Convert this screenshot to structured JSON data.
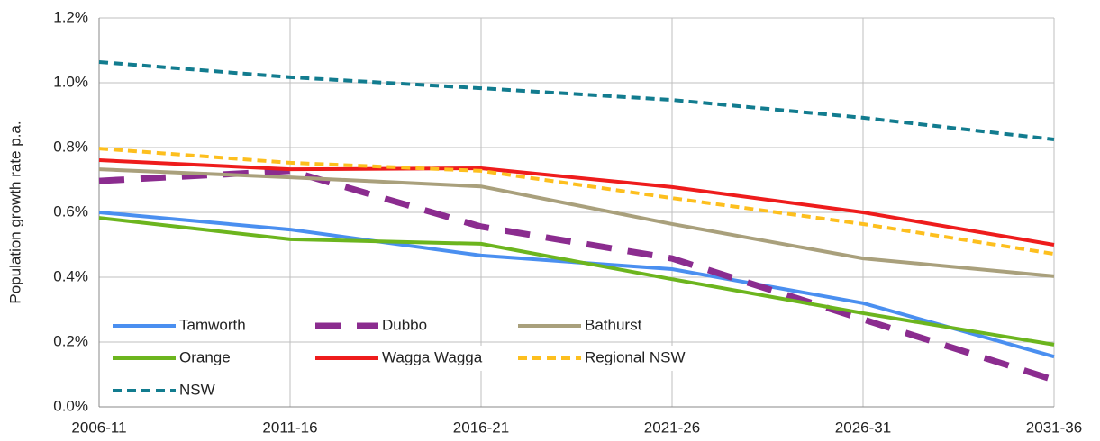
{
  "chart_data": {
    "type": "line",
    "y_label": "Population growth rate p.a.",
    "categories": [
      "2006-11",
      "2011-16",
      "2016-21",
      "2021-26",
      "2026-31",
      "2031-36"
    ],
    "ylim": [
      0,
      1.2
    ],
    "yticks": [
      {
        "value": 0,
        "label": "0.0%"
      },
      {
        "value": 0.2,
        "label": "0.2%"
      },
      {
        "value": 0.4,
        "label": "0.4%"
      },
      {
        "value": 0.6,
        "label": "0.6%"
      },
      {
        "value": 0.8,
        "label": "0.8%"
      },
      {
        "value": 1.0,
        "label": "1.0%"
      },
      {
        "value": 1.2,
        "label": "1.2%"
      }
    ],
    "grid": true,
    "legend": "bottom-left",
    "series": [
      {
        "name": "Tamworth",
        "color": "#4a8ff0",
        "line_style": "solid",
        "values": [
          0.6,
          0.547,
          0.467,
          0.425,
          0.32,
          0.155
        ]
      },
      {
        "name": "Dubbo",
        "color": "#8b2c8f",
        "line_style": "long-dash",
        "values": [
          0.697,
          0.728,
          0.556,
          0.458,
          0.27,
          0.083
        ]
      },
      {
        "name": "Bathurst",
        "color": "#a9a07c",
        "line_style": "solid",
        "values": [
          0.733,
          0.708,
          0.68,
          0.564,
          0.458,
          0.403
        ]
      },
      {
        "name": "Orange",
        "color": "#6cb51e",
        "line_style": "solid",
        "values": [
          0.583,
          0.517,
          0.503,
          0.394,
          0.289,
          0.192
        ]
      },
      {
        "name": "Wagga Wagga",
        "color": "#ee1c1c",
        "line_style": "solid",
        "values": [
          0.761,
          0.733,
          0.736,
          0.678,
          0.6,
          0.5
        ]
      },
      {
        "name": "Regional NSW",
        "color": "#fdbf1e",
        "line_style": "dash",
        "values": [
          0.797,
          0.753,
          0.728,
          0.644,
          0.564,
          0.472
        ]
      },
      {
        "name": "NSW",
        "color": "#127c8f",
        "line_style": "dash",
        "values": [
          1.064,
          1.017,
          0.983,
          0.947,
          0.892,
          0.825
        ]
      }
    ]
  }
}
